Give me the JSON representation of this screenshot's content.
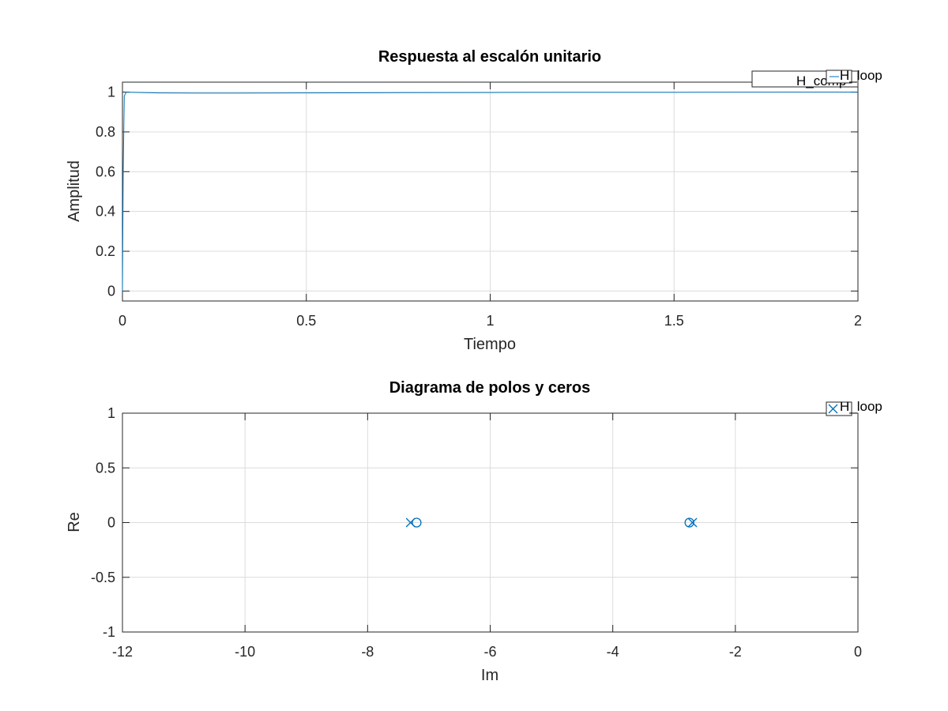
{
  "chart_data": [
    {
      "type": "line",
      "title": "Respuesta al escalón unitario",
      "xlabel": "Tiempo",
      "ylabel": "Amplitud",
      "xlim": [
        0,
        2
      ],
      "ylim": [
        -0.05,
        1.05
      ],
      "xticks": [
        0,
        0.5,
        1,
        1.5,
        2
      ],
      "xtick_labels": [
        "0",
        "0.5",
        "1",
        "1.5",
        "2"
      ],
      "yticks": [
        0,
        0.2,
        0.4,
        0.6,
        0.8,
        1
      ],
      "ytick_labels": [
        "0",
        "0.2",
        "0.4",
        "0.6",
        "0.8",
        "1"
      ],
      "grid": true,
      "legend_placement": "top-right",
      "legend": [
        {
          "label": "H_loop",
          "color": "#0072BD"
        },
        {
          "label": "H_comp",
          "color": "#0072BD"
        }
      ],
      "series": [
        {
          "name": "H_loop",
          "color": "#0072BD",
          "x": [
            0,
            0.002,
            0.005,
            0.01,
            0.05,
            0.1,
            0.2,
            0.3,
            0.5,
            0.7,
            1.0,
            1.2,
            1.5,
            1.8,
            2.0
          ],
          "y": [
            0,
            0.6,
            0.98,
            1.0,
            0.998,
            0.996,
            0.995,
            0.995,
            0.996,
            0.997,
            0.998,
            0.999,
            0.999,
            1.0,
            1.0
          ]
        }
      ]
    },
    {
      "type": "scatter",
      "title": "Diagrama de polos y ceros",
      "xlabel": "Im",
      "ylabel": "Re",
      "xlim": [
        -12,
        0
      ],
      "ylim": [
        -1,
        1
      ],
      "xticks": [
        -12,
        -10,
        -8,
        -6,
        -4,
        -2,
        0
      ],
      "xtick_labels": [
        "-12",
        "-10",
        "-8",
        "-6",
        "-4",
        "-2",
        "0"
      ],
      "yticks": [
        -1,
        -0.5,
        0,
        0.5,
        1
      ],
      "ytick_labels": [
        "-1",
        "-0.5",
        "0",
        "0.5",
        "1"
      ],
      "grid": true,
      "legend_placement": "top-right",
      "legend": [
        {
          "label": "H_loop",
          "color": "#0072BD",
          "marker": "x"
        }
      ],
      "series": [
        {
          "name": "H_loop",
          "kind": "poles",
          "marker": "x",
          "color": "#0072BD",
          "points": [
            {
              "x": -7.3,
              "y": 0
            },
            {
              "x": -2.7,
              "y": 0
            }
          ]
        },
        {
          "name": "H_loop",
          "kind": "zeros",
          "marker": "o",
          "color": "#0072BD",
          "points": [
            {
              "x": -7.2,
              "y": 0
            },
            {
              "x": -2.75,
              "y": 0
            }
          ]
        }
      ]
    }
  ]
}
